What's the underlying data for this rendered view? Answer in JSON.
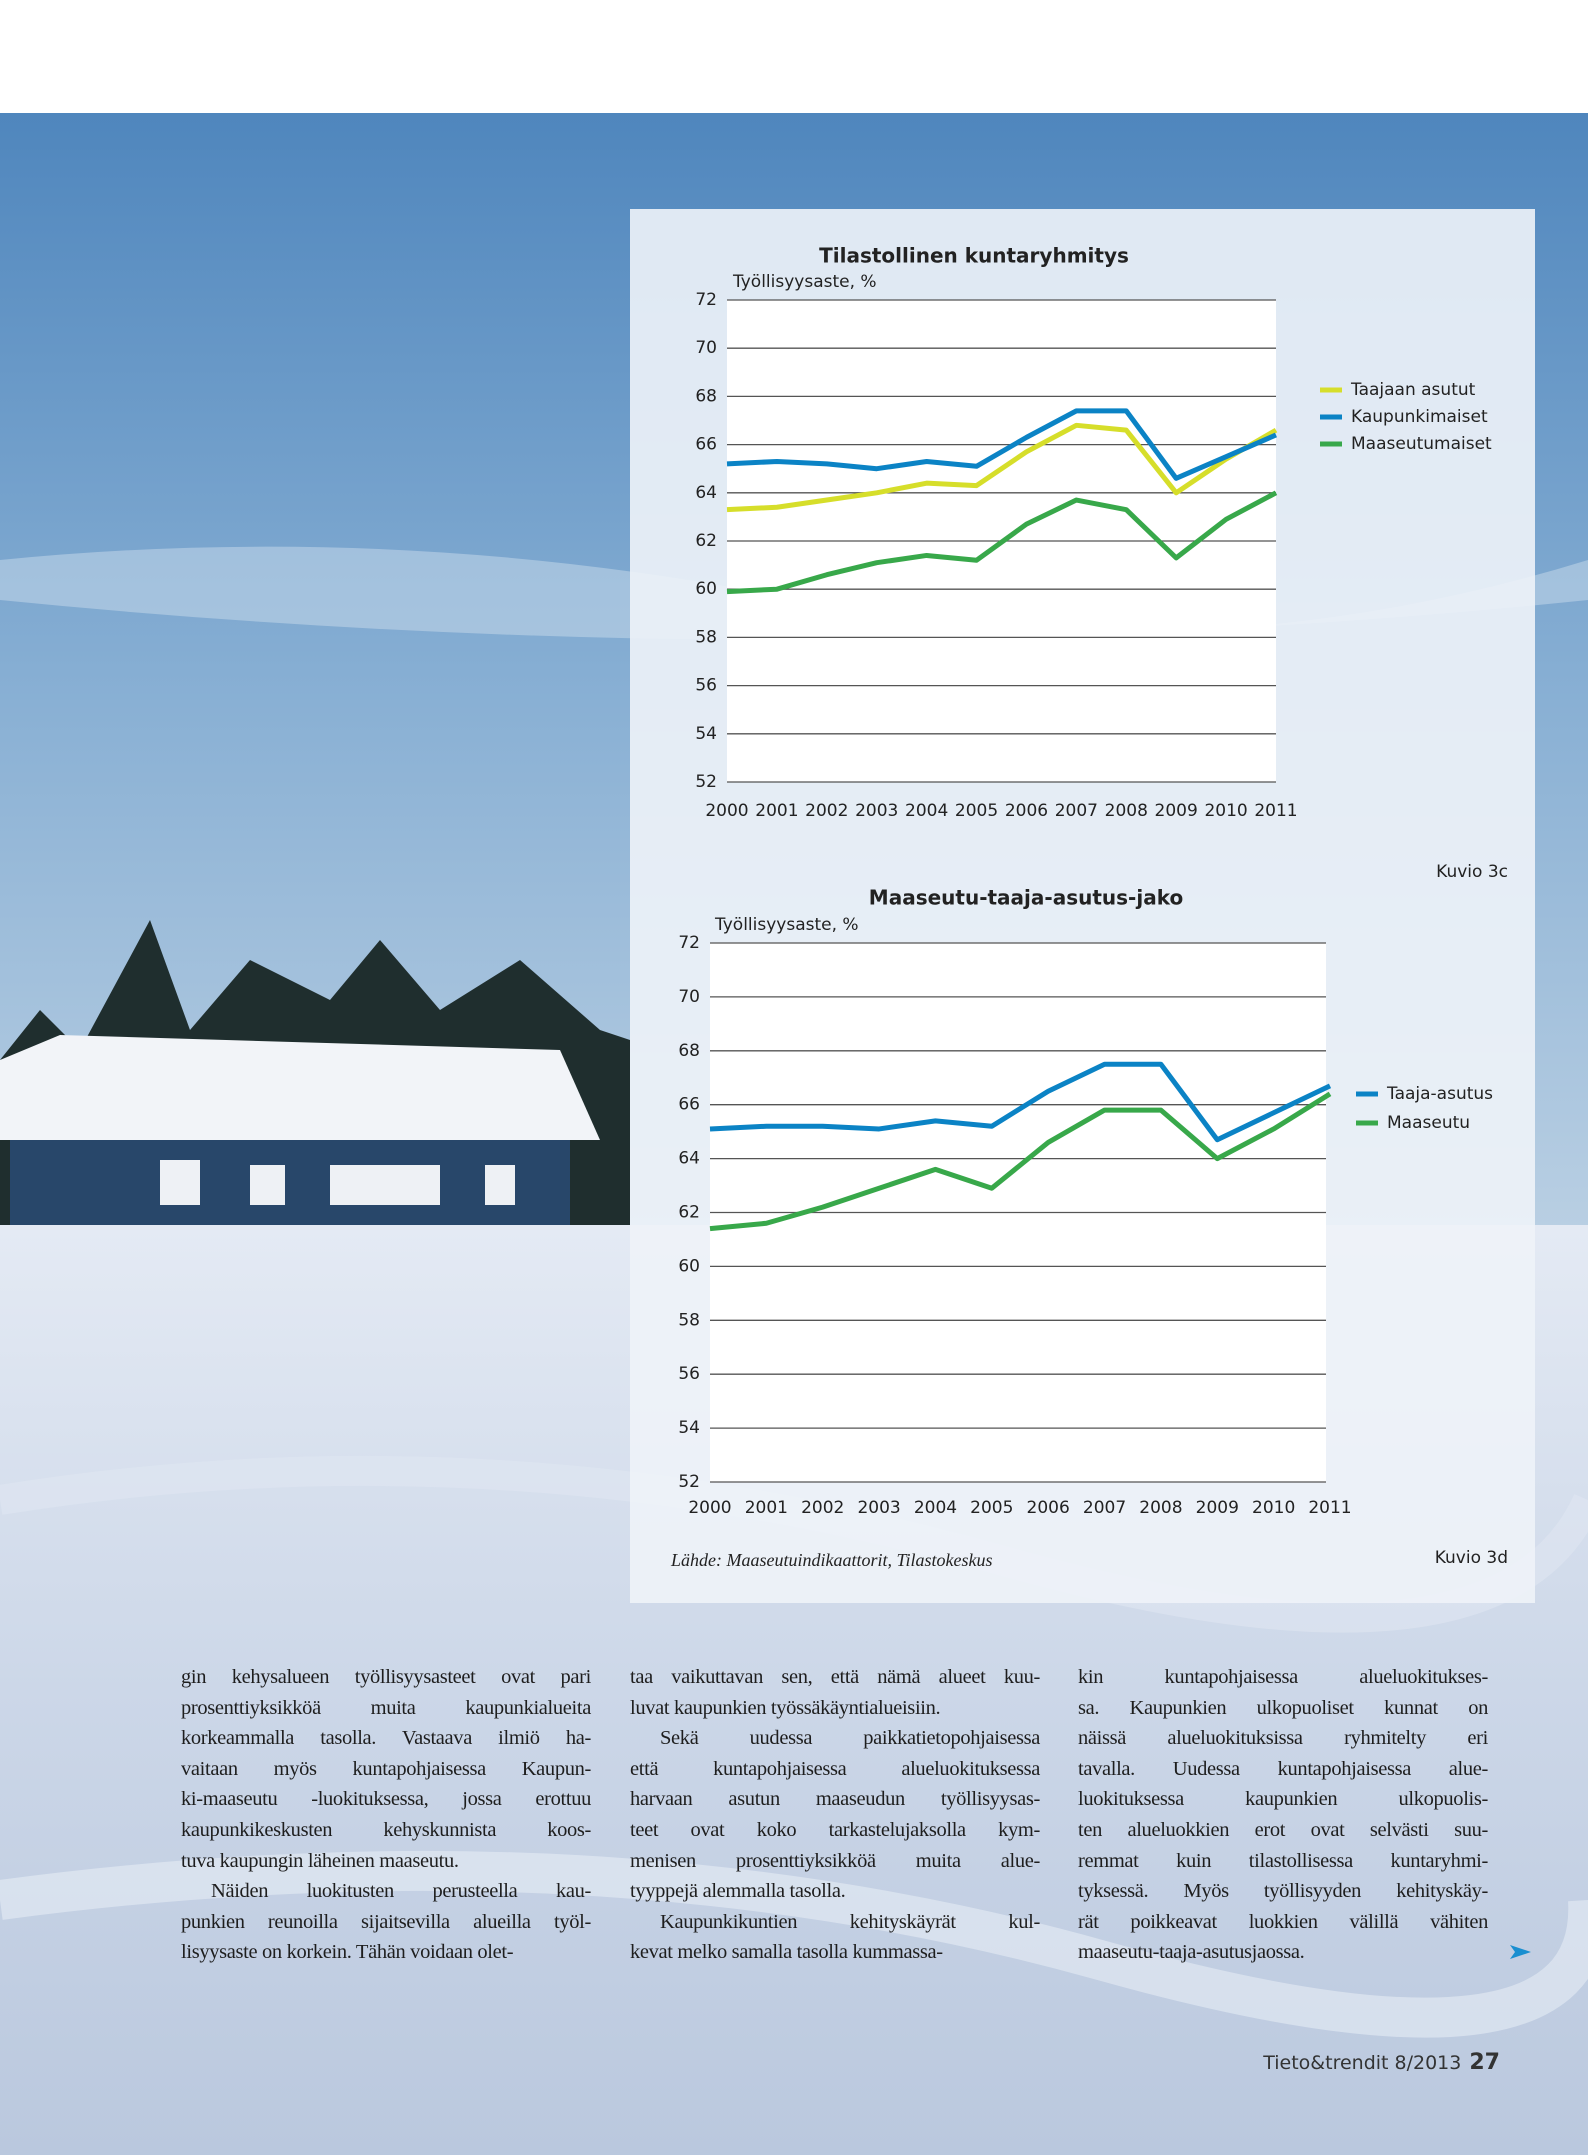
{
  "chart_data": [
    {
      "type": "line",
      "title": "Tilastollinen kuntaryhmitys",
      "y_label": "Työllisyysaste, %",
      "categories": [
        "2000",
        "2001",
        "2002",
        "2003",
        "2004",
        "2005",
        "2006",
        "2007",
        "2008",
        "2009",
        "2010",
        "2011"
      ],
      "series": [
        {
          "name": "Taajaan asutut",
          "color": "#d6de2a",
          "values": [
            63.3,
            63.4,
            63.7,
            64.0,
            64.4,
            64.3,
            65.7,
            66.8,
            66.6,
            64.0,
            65.4,
            66.6
          ]
        },
        {
          "name": "Kaupunkimaiset",
          "color": "#0b83c5",
          "values": [
            65.2,
            65.3,
            65.2,
            65.0,
            65.3,
            65.1,
            66.3,
            67.4,
            67.4,
            64.6,
            65.5,
            66.4
          ]
        },
        {
          "name": "Maaseutumaiset",
          "color": "#38a84a",
          "values": [
            59.9,
            60.0,
            60.6,
            61.1,
            61.4,
            61.2,
            62.7,
            63.7,
            63.3,
            61.3,
            62.9,
            64.0
          ]
        }
      ],
      "ylim": [
        52,
        72
      ],
      "yticks": [
        52,
        54,
        56,
        58,
        60,
        62,
        64,
        66,
        68,
        70,
        72
      ],
      "grid": true,
      "legend": "right",
      "caption": "Kuvio 3c"
    },
    {
      "type": "line",
      "title": "Maaseutu-taaja-asutus-jako",
      "y_label": "Työllisyysaste, %",
      "categories": [
        "2000",
        "2001",
        "2002",
        "2003",
        "2004",
        "2005",
        "2006",
        "2007",
        "2008",
        "2009",
        "2010",
        "2011"
      ],
      "series": [
        {
          "name": "Taaja-asutus",
          "color": "#0b83c5",
          "values": [
            65.1,
            65.2,
            65.2,
            65.1,
            65.4,
            65.2,
            66.5,
            67.5,
            67.5,
            64.7,
            65.7,
            66.7
          ]
        },
        {
          "name": "Maaseutu",
          "color": "#38a84a",
          "values": [
            61.4,
            61.6,
            62.2,
            62.9,
            63.6,
            62.9,
            64.6,
            65.8,
            65.8,
            64.0,
            65.1,
            66.4
          ]
        }
      ],
      "ylim": [
        52,
        72
      ],
      "yticks": [
        52,
        54,
        56,
        58,
        60,
        62,
        64,
        66,
        68,
        70,
        72
      ],
      "grid": true,
      "legend": "right",
      "caption": "Kuvio 3d"
    }
  ],
  "source": "Lähde: Maaseutuindikaattorit, Tilastokeskus",
  "columns": [
    [
      [
        "gin kehysalueen työllisyysasteet ovat pari",
        "prosenttiyksikköä muita kaupunkialueita",
        "korkeammalla tasolla. Vastaava ilmiö ha-",
        "vaitaan myös kuntapohjaisessa Kaupun-",
        "ki-maaseutu -luokituksessa, jossa erottuu",
        "kaupunkikeskusten kehyskunnista koos-",
        "tuva kaupungin läheinen maaseutu."
      ],
      [
        "Näiden luokitusten perusteella kau-",
        "punkien reunoilla sijaitsevilla alueilla työl-",
        "lisyysaste on korkein. Tähän voidaan olet-"
      ]
    ],
    [
      [
        "taa vaikuttavan sen, että nämä alueet kuu-",
        "luvat kaupunkien työssäkäyntialueisiin."
      ],
      [
        "Sekä uudessa paikkatietopohjaisessa",
        "että kuntapohjaisessa alueluokituksessa",
        "harvaan asutun maaseudun työllisyysas-",
        "teet ovat koko tarkastelujaksolla kym-",
        "menisen prosenttiyksikköä muita alue-",
        "tyyppejä alemmalla tasolla."
      ],
      [
        "Kaupunkikuntien kehityskäyrät kul-",
        "kevat melko samalla tasolla kummassa-"
      ]
    ],
    [
      [
        "kin kuntapohjaisessa alueluokitukses-",
        "sa. Kaupunkien ulkopuoliset kunnat on",
        "näissä alueluokituksissa ryhmitelty eri",
        "tavalla. Uudessa kuntapohjaisessa alue-",
        "luokituksessa kaupunkien ulkopuolis-",
        "ten alueluokkien erot ovat selvästi suu-",
        "remmat kuin tilastollisessa kuntaryhmi-",
        "tyksessä. Myös työllisyyden kehityskäy-",
        "rät poikkeavat luokkien välillä vähiten",
        "maaseutu-taaja-asutusjaossa."
      ]
    ]
  ],
  "footer": {
    "publication": "Tieto&trendit 8/2013",
    "page": "27"
  }
}
